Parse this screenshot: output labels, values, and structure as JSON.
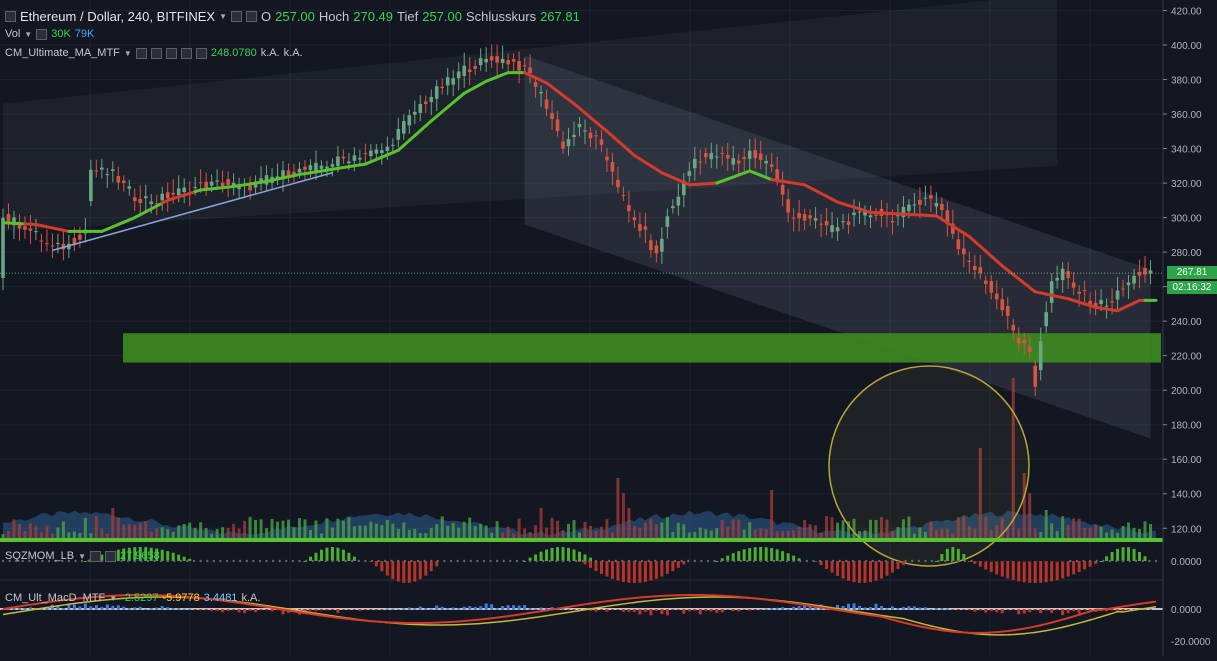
{
  "header": {
    "symbol": "Ethereum / Dollar, 240, BITFINEX",
    "open_label": "O",
    "open": "257.00",
    "high_label": "Hoch",
    "high": "270.49",
    "low_label": "Tief",
    "low": "257.00",
    "close_label": "Schlusskurs",
    "close": "267.81"
  },
  "indicators": {
    "vol": {
      "label": "Vol",
      "v1": "30K",
      "v2": "79K"
    },
    "ma": {
      "label": "CM_Ultimate_MA_MTF",
      "value": "248.0780",
      "na1": "k.A.",
      "na2": "k.A."
    },
    "sqz": {
      "label": "SQZMOM_LB",
      "value": "27.9658"
    },
    "macd": {
      "label": "CM_Ult_MacD_MTF",
      "v1": "-2.5297",
      "v2": "-5.9778",
      "v3": "3.4481",
      "na": "k.A."
    }
  },
  "price_tag": {
    "price": "267.81",
    "countdown": "02:16:32"
  },
  "colors": {
    "up": "#6ba583",
    "down": "#d75442",
    "ma_up": "#59c12f",
    "ma_down": "#d43b2c",
    "zone": "#3d8c1f",
    "circle": "#b8a63a"
  },
  "chart_data": {
    "type": "candlestick",
    "title": "Ethereum / Dollar, 240, BITFINEX",
    "price_axis": {
      "ylim": [
        110,
        425
      ],
      "ticks": [
        "420.00",
        "400.00",
        "380.00",
        "360.00",
        "340.00",
        "320.00",
        "300.00",
        "280.00",
        "260.00",
        "240.00",
        "220.00",
        "200.00",
        "180.00",
        "160.00",
        "140.00",
        "120.00"
      ]
    },
    "sqz_axis": {
      "ticks": [
        "0.0000"
      ]
    },
    "macd_axis": {
      "ticks": [
        "0.0000",
        "-20.0000"
      ]
    },
    "price_path": [
      [
        0,
        300
      ],
      [
        4,
        295
      ],
      [
        9,
        282
      ],
      [
        12,
        284
      ],
      [
        15,
        293
      ],
      [
        16,
        328
      ],
      [
        20,
        325
      ],
      [
        24,
        312
      ],
      [
        28,
        310
      ],
      [
        32,
        315
      ],
      [
        36,
        318
      ],
      [
        40,
        320
      ],
      [
        44,
        317
      ],
      [
        48,
        322
      ],
      [
        52,
        326
      ],
      [
        56,
        328
      ],
      [
        60,
        332
      ],
      [
        64,
        336
      ],
      [
        68,
        338
      ],
      [
        70,
        340
      ],
      [
        72,
        350
      ],
      [
        76,
        365
      ],
      [
        80,
        376
      ],
      [
        84,
        386
      ],
      [
        87,
        390
      ],
      [
        90,
        392
      ],
      [
        93,
        390
      ],
      [
        96,
        383
      ],
      [
        99,
        365
      ],
      [
        102,
        342
      ],
      [
        105,
        352
      ],
      [
        108,
        345
      ],
      [
        111,
        328
      ],
      [
        114,
        302
      ],
      [
        117,
        290
      ],
      [
        119,
        277
      ],
      [
        121,
        300
      ],
      [
        124,
        320
      ],
      [
        126,
        334
      ],
      [
        130,
        336
      ],
      [
        134,
        332
      ],
      [
        136,
        338
      ],
      [
        140,
        330
      ],
      [
        143,
        303
      ],
      [
        147,
        298
      ],
      [
        151,
        294
      ],
      [
        155,
        300
      ],
      [
        159,
        303
      ],
      [
        162,
        300
      ],
      [
        165,
        305
      ],
      [
        168,
        313
      ],
      [
        171,
        305
      ],
      [
        174,
        283
      ],
      [
        177,
        270
      ],
      [
        180,
        258
      ],
      [
        183,
        244
      ],
      [
        185,
        228
      ],
      [
        187,
        222
      ],
      [
        188,
        203
      ],
      [
        189,
        230
      ],
      [
        191,
        262
      ],
      [
        193,
        268
      ],
      [
        195,
        259
      ],
      [
        197,
        255
      ],
      [
        199,
        249
      ],
      [
        202,
        252
      ],
      [
        205,
        262
      ],
      [
        207,
        268
      ]
    ],
    "ma_path": [
      [
        0,
        297
      ],
      [
        6,
        296
      ],
      [
        12,
        292
      ],
      [
        18,
        292
      ],
      [
        24,
        300
      ],
      [
        30,
        310
      ],
      [
        36,
        316
      ],
      [
        42,
        318
      ],
      [
        48,
        321
      ],
      [
        54,
        325
      ],
      [
        60,
        328
      ],
      [
        66,
        331
      ],
      [
        72,
        339
      ],
      [
        78,
        356
      ],
      [
        84,
        372
      ],
      [
        88,
        379
      ],
      [
        92,
        384
      ],
      [
        95,
        384
      ],
      [
        99,
        378
      ],
      [
        104,
        366
      ],
      [
        110,
        350
      ],
      [
        115,
        336
      ],
      [
        120,
        326
      ],
      [
        125,
        319
      ],
      [
        130,
        320
      ],
      [
        136,
        327
      ],
      [
        140,
        322
      ],
      [
        146,
        319
      ],
      [
        152,
        309
      ],
      [
        158,
        303
      ],
      [
        164,
        302
      ],
      [
        170,
        301
      ],
      [
        176,
        289
      ],
      [
        182,
        272
      ],
      [
        188,
        257
      ],
      [
        194,
        253
      ],
      [
        199,
        248
      ],
      [
        203,
        246
      ],
      [
        207,
        252
      ]
    ],
    "ma_down_ranges": [
      [
        4,
        11
      ],
      [
        29,
        34
      ],
      [
        95,
        129
      ],
      [
        140,
        207
      ]
    ],
    "trendline": [
      [
        9,
        281
      ],
      [
        60,
        326
      ]
    ],
    "support_zone": {
      "ylim": [
        216,
        233
      ]
    },
    "wedge": {
      "top_from": [
        95,
        394
      ],
      "top_to": [
        209,
        270
      ],
      "bottom_from": [
        95,
        296
      ],
      "bottom_to": [
        209,
        172
      ]
    },
    "upper_channel": {
      "top_from": [
        0,
        366
      ],
      "top_to": [
        192,
        430
      ],
      "bottom_from": [
        0,
        292
      ],
      "bottom_to": [
        192,
        330
      ]
    },
    "volume_spikes": [
      [
        20,
        30
      ],
      [
        112,
        60
      ],
      [
        113,
        45
      ],
      [
        114,
        30
      ],
      [
        178,
        90
      ],
      [
        184,
        160
      ],
      [
        186,
        65
      ],
      [
        187,
        45
      ],
      [
        190,
        28
      ],
      [
        140,
        48
      ],
      [
        150,
        22
      ],
      [
        98,
        30
      ]
    ],
    "sqz_waves": [
      [
        15,
        35,
        1
      ],
      [
        55,
        65,
        1
      ],
      [
        67,
        80,
        -1
      ],
      [
        95,
        108,
        1
      ],
      [
        105,
        125,
        -1
      ],
      [
        130,
        146,
        1
      ],
      [
        148,
        165,
        -1
      ],
      [
        170,
        176,
        1
      ],
      [
        176,
        200,
        -1
      ],
      [
        200,
        209,
        1
      ]
    ],
    "x_count": 210
  }
}
